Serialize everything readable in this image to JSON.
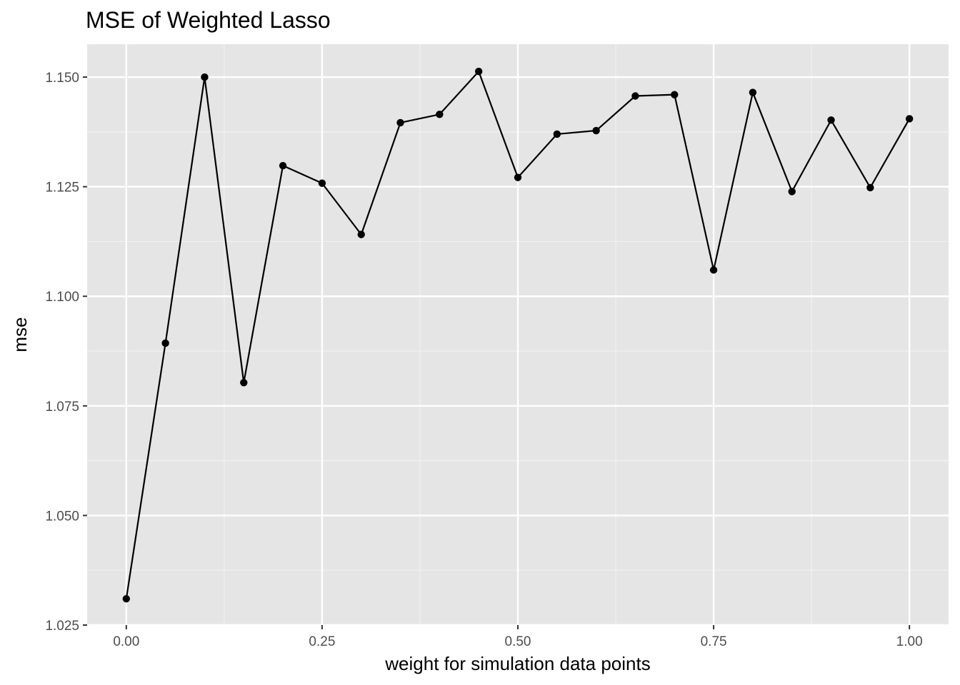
{
  "chart_data": {
    "type": "line",
    "title": "MSE of Weighted Lasso",
    "xlabel": "weight for simulation data points",
    "ylabel": "mse",
    "xlim": [
      -0.05,
      1.05
    ],
    "ylim": [
      1.025,
      1.1575
    ],
    "x_ticks": [
      0.0,
      0.25,
      0.5,
      0.75,
      1.0
    ],
    "x_tick_labels": [
      "0.00",
      "0.25",
      "0.50",
      "0.75",
      "1.00"
    ],
    "y_ticks": [
      1.025,
      1.05,
      1.075,
      1.1,
      1.125,
      1.15
    ],
    "y_tick_labels": [
      "1.025",
      "1.050",
      "1.075",
      "1.100",
      "1.125",
      "1.150"
    ],
    "grid": true,
    "series": [
      {
        "color": "#000000",
        "x": [
          0.0,
          0.05,
          0.1,
          0.15,
          0.2,
          0.25,
          0.3,
          0.35,
          0.4,
          0.45,
          0.5,
          0.55,
          0.6,
          0.65,
          0.7,
          0.75,
          0.8,
          0.85,
          0.9,
          0.95,
          1.0
        ],
        "y": [
          1.031,
          1.0893,
          1.15,
          1.0803,
          1.1298,
          1.1258,
          1.1141,
          1.1396,
          1.1415,
          1.1513,
          1.1271,
          1.137,
          1.1378,
          1.1457,
          1.146,
          1.106,
          1.1465,
          1.1239,
          1.1402,
          1.1248,
          1.1405
        ]
      }
    ]
  }
}
